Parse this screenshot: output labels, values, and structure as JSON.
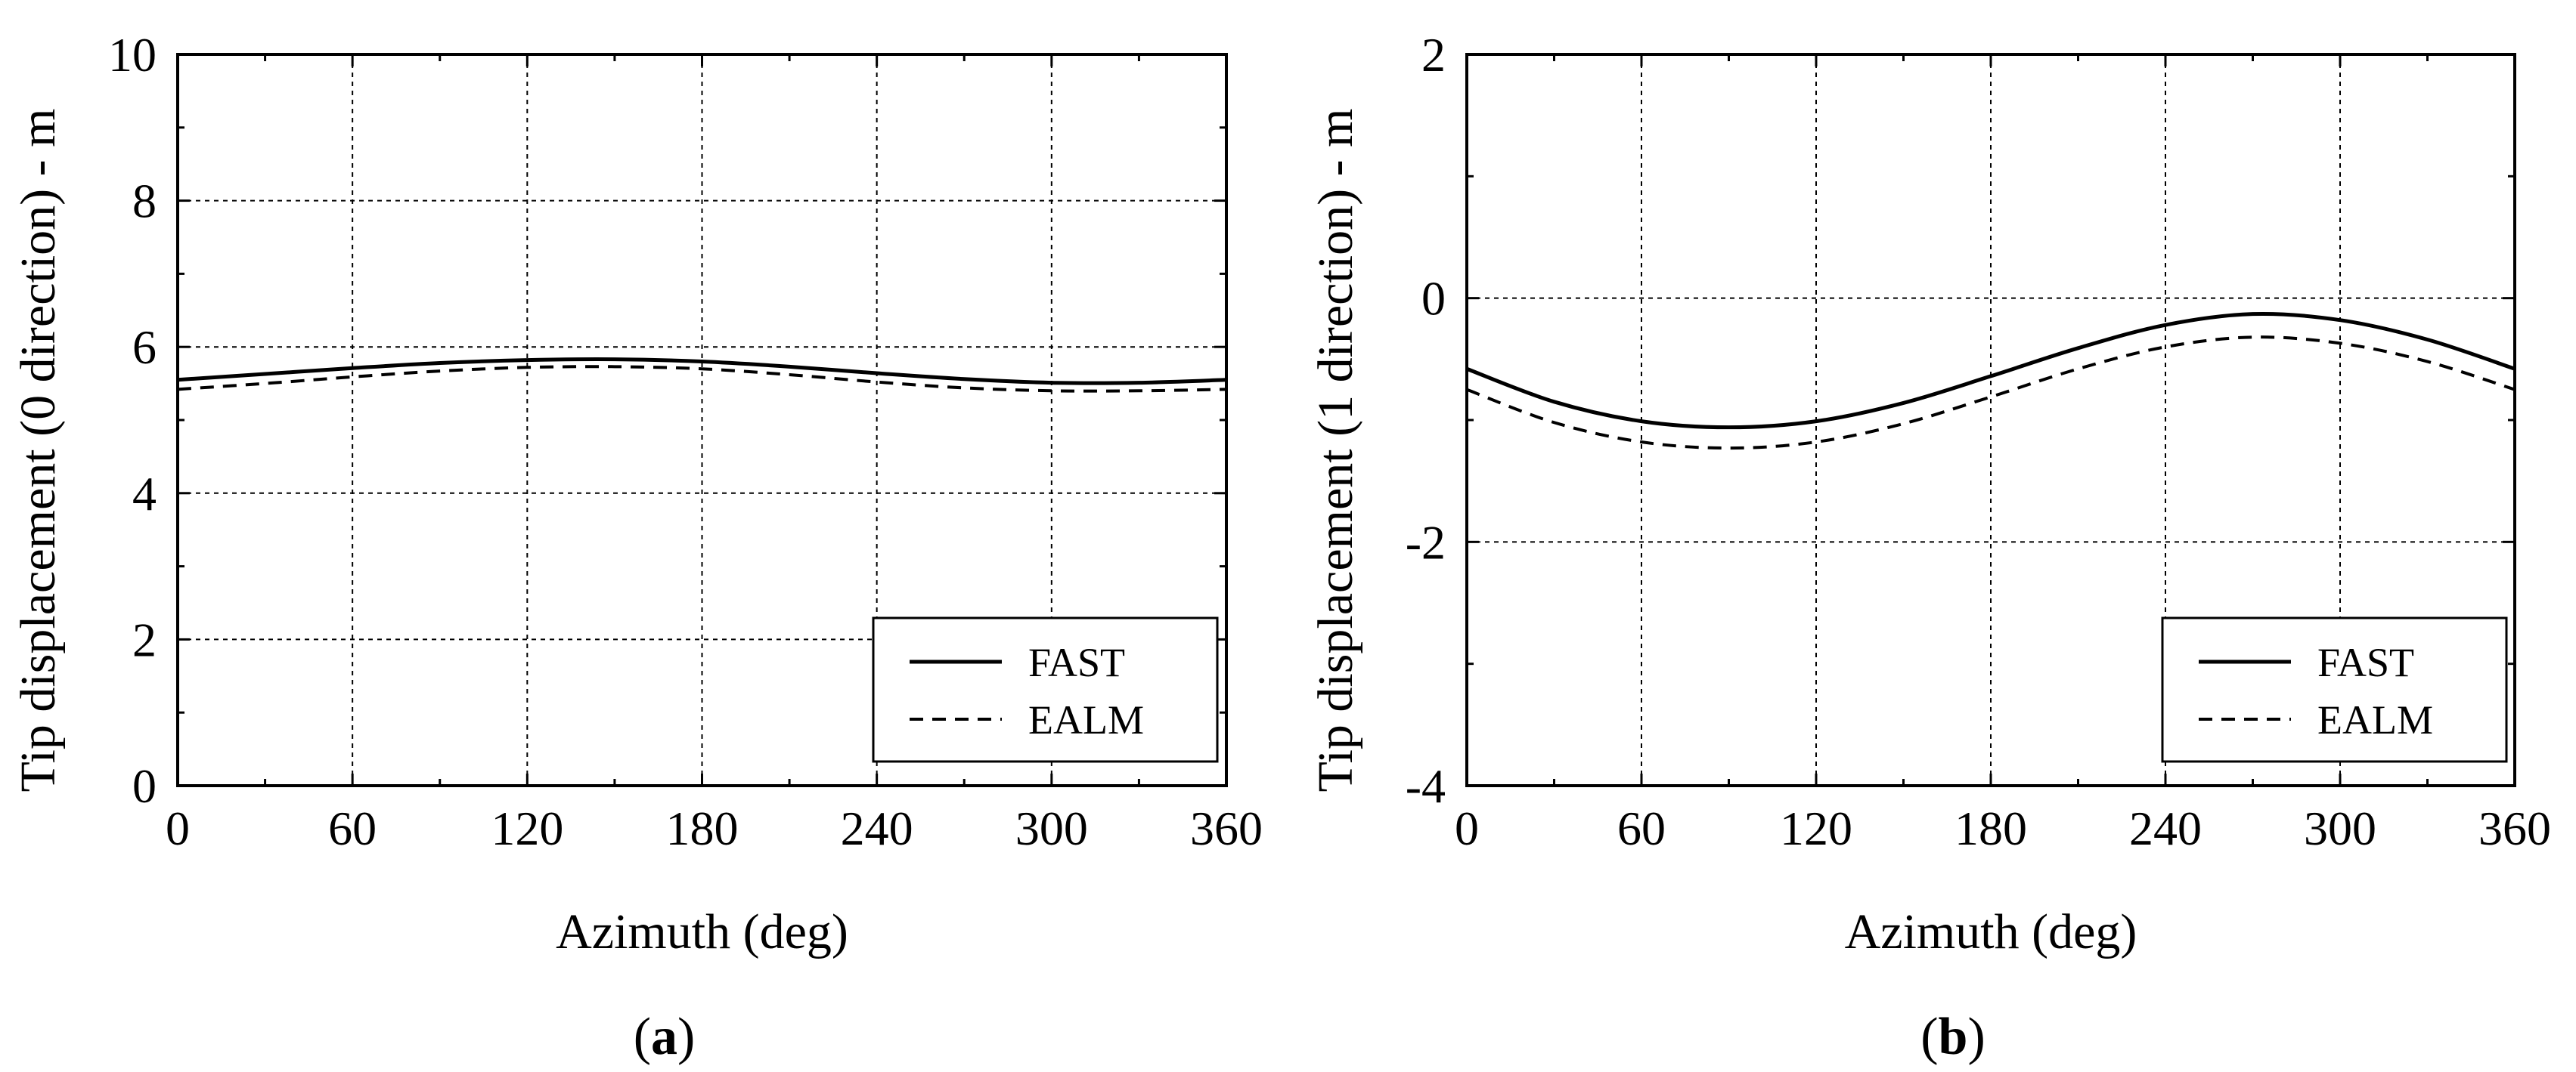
{
  "chart_data": [
    {
      "type": "line",
      "panel_label": "(a)",
      "panel_letter": "a",
      "title": "",
      "xlabel": "Azimuth (deg)",
      "ylabel": "Tip displacement (0 direction) - m",
      "xlim": [
        0,
        360
      ],
      "ylim": [
        0,
        10
      ],
      "xticks": [
        0,
        60,
        120,
        180,
        240,
        300,
        360
      ],
      "yticks": [
        0,
        2,
        4,
        6,
        8,
        10
      ],
      "grid": true,
      "legend_position": "bottom-right",
      "x": [
        0,
        30,
        60,
        90,
        120,
        150,
        180,
        210,
        240,
        270,
        300,
        330,
        360
      ],
      "series": [
        {
          "name": "FAST",
          "style": "solid",
          "values": [
            5.55,
            5.63,
            5.71,
            5.78,
            5.82,
            5.83,
            5.8,
            5.73,
            5.64,
            5.56,
            5.51,
            5.51,
            5.55
          ]
        },
        {
          "name": "EALM",
          "style": "dashed",
          "values": [
            5.42,
            5.5,
            5.59,
            5.67,
            5.72,
            5.73,
            5.7,
            5.62,
            5.52,
            5.44,
            5.4,
            5.4,
            5.42
          ]
        }
      ]
    },
    {
      "type": "line",
      "panel_label": "(b)",
      "panel_letter": "b",
      "title": "",
      "xlabel": "Azimuth  (deg)",
      "ylabel": "Tip displacement (1 direction) - m",
      "xlim": [
        0,
        360
      ],
      "ylim": [
        -4,
        2
      ],
      "xticks": [
        0,
        60,
        120,
        180,
        240,
        300,
        360
      ],
      "yticks": [
        -4,
        -2,
        0,
        2
      ],
      "grid": true,
      "legend_position": "bottom-right",
      "x": [
        0,
        30,
        60,
        90,
        120,
        150,
        180,
        210,
        240,
        270,
        300,
        330,
        360
      ],
      "series": [
        {
          "name": "FAST",
          "style": "solid",
          "values": [
            -0.58,
            -0.85,
            -1.01,
            -1.06,
            -1.01,
            -0.86,
            -0.64,
            -0.41,
            -0.22,
            -0.13,
            -0.18,
            -0.34,
            -0.58
          ]
        },
        {
          "name": "EALM",
          "style": "dashed",
          "values": [
            -0.75,
            -1.02,
            -1.18,
            -1.23,
            -1.18,
            -1.03,
            -0.81,
            -0.58,
            -0.4,
            -0.32,
            -0.37,
            -0.52,
            -0.75
          ]
        }
      ]
    }
  ]
}
